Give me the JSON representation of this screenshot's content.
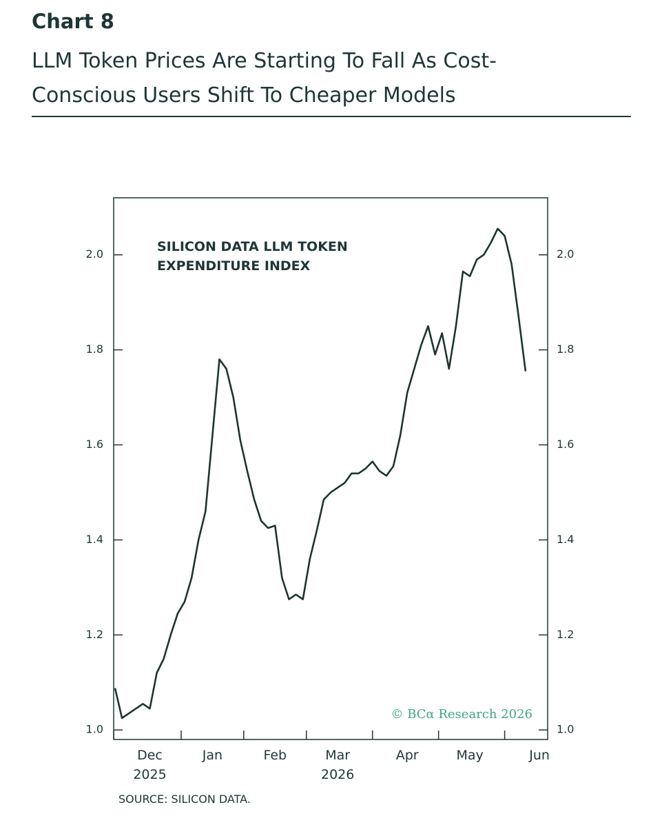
{
  "header": "Chart 8",
  "title": "LLM Token Prices Are Starting To Fall As Cost-\nConscious Users Shift To Cheaper Models",
  "source": "SOURCE: SILICON DATA.",
  "chart_data": {
    "type": "line",
    "annotation": "SILICON DATA LLM TOKEN\nEXPENDITURE INDEX",
    "credit": "© BCα Research 2026",
    "categories": [
      null,
      null,
      null,
      null,
      null,
      "Dec\n2025",
      null,
      null,
      null,
      null,
      null,
      null,
      null,
      null,
      "Jan",
      null,
      null,
      null,
      null,
      null,
      null,
      null,
      null,
      "Feb",
      null,
      null,
      null,
      null,
      null,
      null,
      null,
      null,
      "Mar\n2026",
      null,
      null,
      null,
      null,
      null,
      null,
      null,
      null,
      null,
      "Apr",
      null,
      null,
      null,
      null,
      null,
      null,
      null,
      null,
      "May",
      null,
      null,
      null,
      null,
      null,
      null,
      null,
      null,
      null,
      "Jun"
    ],
    "series": [
      {
        "name": "Silicon Data LLM Token Expenditure Index",
        "color": "#1e3330",
        "values": [
          1.088,
          1.025,
          1.035,
          1.045,
          1.055,
          1.045,
          1.12,
          1.15,
          1.2,
          1.245,
          1.27,
          1.32,
          1.4,
          1.46,
          1.62,
          1.78,
          1.76,
          1.7,
          1.61,
          1.545,
          1.485,
          1.44,
          1.425,
          1.43,
          1.32,
          1.275,
          1.285,
          1.275,
          1.36,
          1.42,
          1.485,
          1.5,
          1.51,
          1.52,
          1.54,
          1.54,
          1.55,
          1.565,
          1.545,
          1.535,
          1.555,
          1.62,
          1.71,
          1.76,
          1.81,
          1.85,
          1.79,
          1.835,
          1.76,
          1.85,
          1.965,
          1.955,
          1.99,
          2.0,
          2.025,
          2.055,
          2.04,
          1.98,
          1.87,
          1.755,
          null,
          null
        ]
      }
    ],
    "ylim": [
      0.98,
      2.12
    ],
    "yticks": [
      {
        "value": 1.0,
        "label": "1.0"
      },
      1.2,
      1.4,
      1.6,
      1.8,
      {
        "value": 2.0,
        "label": "2.0"
      }
    ],
    "y2lim": [
      0.98,
      2.12
    ],
    "y2ticks": [
      {
        "value": 1.0,
        "label": "1.0"
      },
      1.2,
      1.4,
      1.6,
      1.8,
      {
        "value": 2.0,
        "label": "2.0"
      }
    ]
  }
}
